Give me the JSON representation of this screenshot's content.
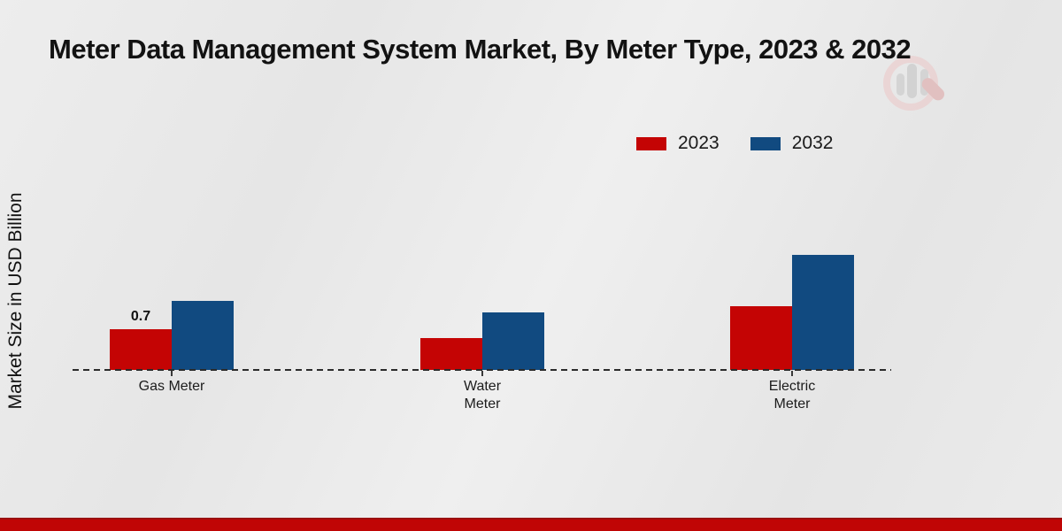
{
  "title": "Meter Data Management System Market, By Meter Type, 2023 & 2032",
  "y_axis_label": "Market Size in USD Billion",
  "legend": [
    {
      "label": "2023",
      "color": "#c40404"
    },
    {
      "label": "2032",
      "color": "#114a80"
    }
  ],
  "colors": {
    "series_2023": "#c40404",
    "series_2032": "#114a80",
    "footer_strip": "#c00505",
    "background": "#e8e8e8",
    "baseline": "#2b2b2b"
  },
  "watermark_icon": "magnifier-bar-chart-logo",
  "chart_data": {
    "type": "bar",
    "title": "Meter Data Management System Market, By Meter Type, 2023 & 2032",
    "categories": [
      "Gas Meter",
      "Water Meter",
      "Electric Meter"
    ],
    "category_lines": [
      [
        "Gas Meter"
      ],
      [
        "Water",
        "Meter"
      ],
      [
        "Electric",
        "Meter"
      ]
    ],
    "series": [
      {
        "name": "2023",
        "color": "#c40404",
        "values": [
          0.7,
          0.55,
          1.1
        ],
        "value_labels": [
          "0.7",
          "",
          ""
        ]
      },
      {
        "name": "2032",
        "color": "#114a80",
        "values": [
          1.2,
          1.0,
          2.0
        ],
        "value_labels": [
          "",
          "",
          ""
        ]
      }
    ],
    "xlabel": "",
    "ylabel": "Market Size in USD Billion",
    "ylim": [
      0,
      2.2
    ],
    "grid": false,
    "y_axis_ticks_visible": false,
    "baseline_style": "dashed",
    "legend_position": "top-right"
  }
}
